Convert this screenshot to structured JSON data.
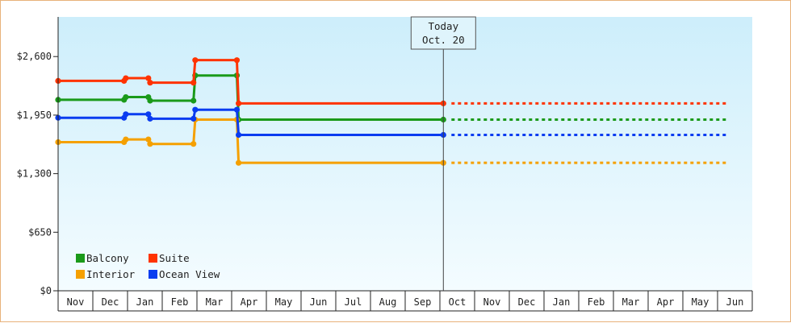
{
  "chart_data": {
    "type": "line",
    "title": "",
    "xlabel": "",
    "ylabel": "",
    "x_ticks": [
      "Nov",
      "Dec",
      "Jan",
      "Feb",
      "Mar",
      "Apr",
      "May",
      "Jun",
      "Jul",
      "Aug",
      "Sep",
      "Oct",
      "Nov",
      "Dec",
      "Jan",
      "Feb",
      "Mar",
      "Apr",
      "May",
      "Jun"
    ],
    "y_ticks": [
      {
        "value": 0,
        "label": "$0"
      },
      {
        "value": 650,
        "label": "$650"
      },
      {
        "value": 1300,
        "label": "$1,300"
      },
      {
        "value": 1950,
        "label": "$1,950"
      },
      {
        "value": 2600,
        "label": "$2,600"
      }
    ],
    "ylim": [
      0,
      3040
    ],
    "x_range_months": [
      0,
      19.25
    ],
    "grid": false,
    "legend_position": "bottom-left",
    "today_marker": {
      "line1": "Today",
      "line2": "Oct. 20",
      "month_position": 11.1
    },
    "series": [
      {
        "name": "Balcony",
        "color": "#1a9a1a",
        "points": [
          [
            0,
            2120
          ],
          [
            1.9,
            2120
          ],
          [
            1.95,
            2150
          ],
          [
            2.6,
            2150
          ],
          [
            2.65,
            2110
          ],
          [
            3.9,
            2110
          ],
          [
            3.95,
            2390
          ],
          [
            5.15,
            2390
          ],
          [
            5.2,
            1900
          ],
          [
            11.1,
            1900
          ]
        ],
        "forecast_to": 19.25
      },
      {
        "name": "Suite",
        "color": "#ff3300",
        "points": [
          [
            0,
            2330
          ],
          [
            1.9,
            2330
          ],
          [
            1.95,
            2360
          ],
          [
            2.6,
            2360
          ],
          [
            2.65,
            2310
          ],
          [
            3.9,
            2310
          ],
          [
            3.95,
            2560
          ],
          [
            5.15,
            2560
          ],
          [
            5.2,
            2080
          ],
          [
            11.1,
            2080
          ]
        ],
        "forecast_to": 19.25
      },
      {
        "name": "Interior",
        "color": "#f5a000",
        "points": [
          [
            0,
            1650
          ],
          [
            1.9,
            1650
          ],
          [
            1.95,
            1680
          ],
          [
            2.6,
            1680
          ],
          [
            2.65,
            1630
          ],
          [
            3.9,
            1630
          ],
          [
            3.95,
            1900
          ],
          [
            5.15,
            1900
          ],
          [
            5.2,
            1420
          ],
          [
            11.1,
            1420
          ]
        ],
        "forecast_to": 19.25
      },
      {
        "name": "Ocean View",
        "color": "#0a3cf0",
        "points": [
          [
            0,
            1920
          ],
          [
            1.9,
            1920
          ],
          [
            1.95,
            1960
          ],
          [
            2.6,
            1960
          ],
          [
            2.65,
            1910
          ],
          [
            3.9,
            1910
          ],
          [
            3.95,
            2010
          ],
          [
            5.15,
            2010
          ],
          [
            5.2,
            1730
          ],
          [
            11.1,
            1730
          ]
        ],
        "forecast_to": 19.25
      }
    ]
  }
}
